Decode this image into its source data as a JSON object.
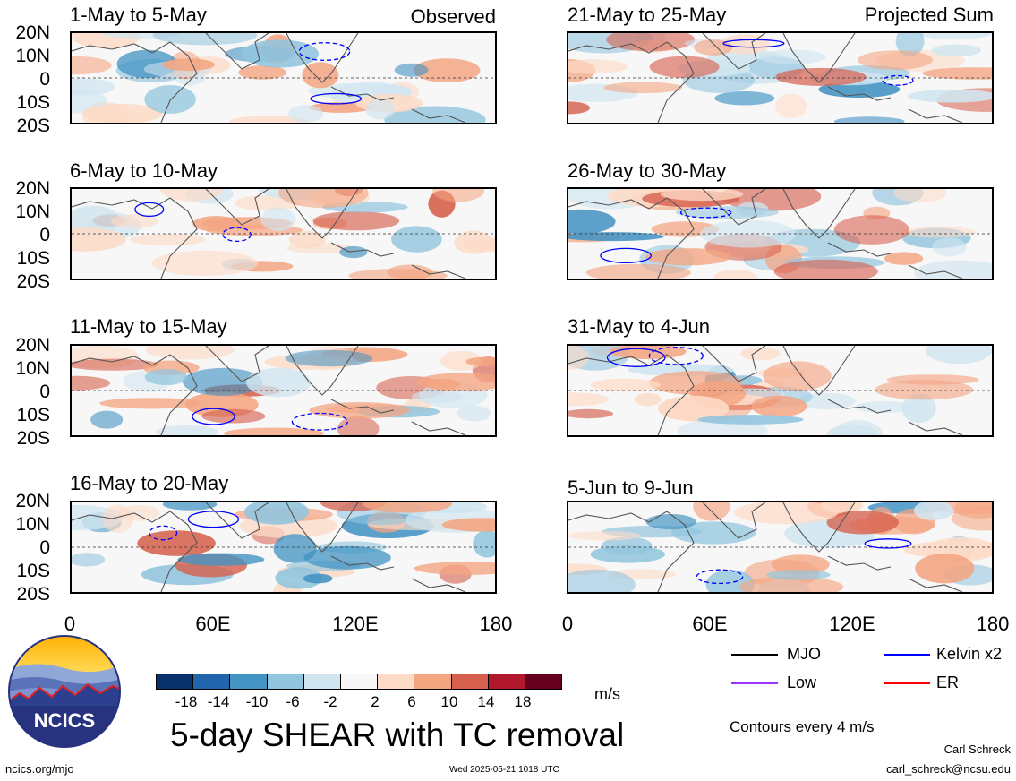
{
  "header": {
    "observed_label": "Observed",
    "projected_label": "Projected Sum"
  },
  "panels_left": [
    {
      "title": "1-May to 5-May"
    },
    {
      "title": "6-May to 10-May"
    },
    {
      "title": "11-May to 15-May"
    },
    {
      "title": "16-May to 20-May"
    }
  ],
  "panels_right": [
    {
      "title": "21-May to 25-May"
    },
    {
      "title": "26-May to 30-May"
    },
    {
      "title": "31-May to 4-Jun"
    },
    {
      "title": "5-Jun to 9-Jun"
    }
  ],
  "lat_labels": [
    "20N",
    "10N",
    "0",
    "10S",
    "20S"
  ],
  "lon_labels": [
    "0",
    "60E",
    "120E",
    "180"
  ],
  "colorbar": {
    "ticks": [
      "-18",
      "-14",
      "-10",
      "-6",
      "-2",
      "2",
      "6",
      "10",
      "14",
      "18"
    ],
    "colors": [
      "#08306b",
      "#2166ac",
      "#4393c3",
      "#92c5de",
      "#d1e5f0",
      "#f7f7f7",
      "#fddbc7",
      "#f4a582",
      "#d6604d",
      "#b2182b",
      "#67001f"
    ],
    "units": "m/s"
  },
  "title": "5-day SHEAR with TC removal",
  "legend": {
    "items": [
      {
        "label": "MJO",
        "color": "#000000"
      },
      {
        "label": "Kelvin x2",
        "color": "#0000ff"
      },
      {
        "label": "Low",
        "color": "#9933ff"
      },
      {
        "label": "ER",
        "color": "#ff0000"
      }
    ],
    "note": "Contours every 4 m/s"
  },
  "logo": {
    "text": "NCICS"
  },
  "footer": {
    "url": "ncics.org/mjo",
    "timestamp": "Wed 2025-05-21 1018 UTC",
    "author": "Carl Schreck",
    "email": "carl_schreck@ncsu.edu"
  }
}
